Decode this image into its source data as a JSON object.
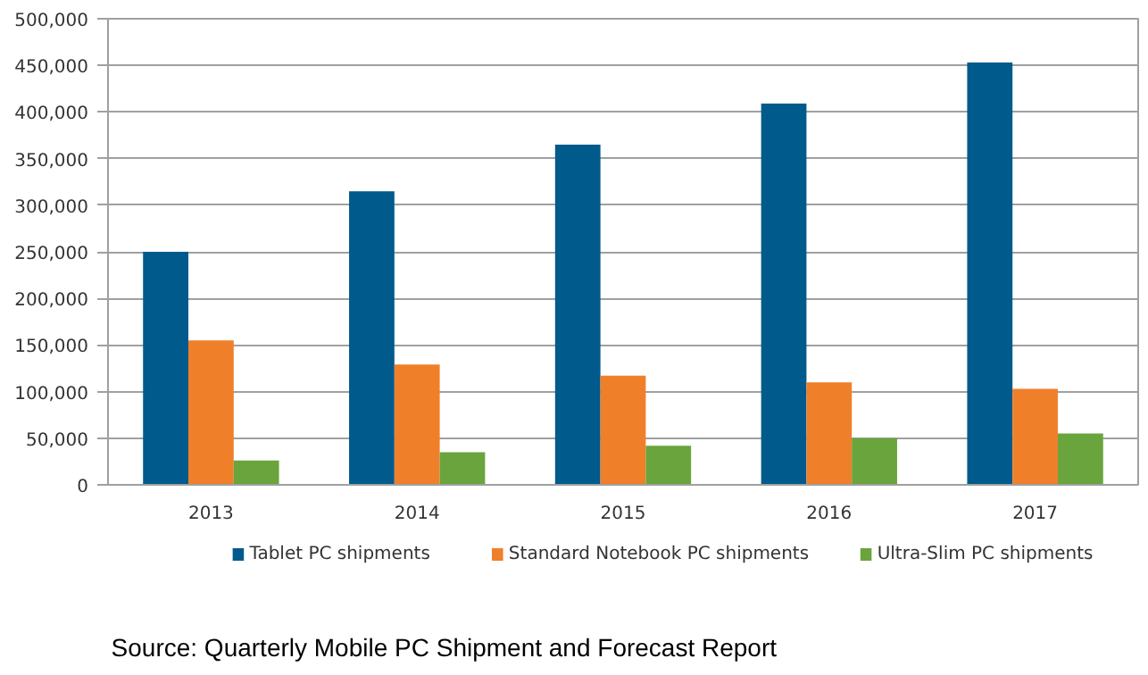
{
  "chart_data": {
    "type": "bar",
    "categories": [
      "2013",
      "2014",
      "2015",
      "2016",
      "2017"
    ],
    "series": [
      {
        "name": "Tablet PC shipments",
        "color": "#005a8c",
        "values": [
          250000,
          315000,
          365000,
          409000,
          453000
        ]
      },
      {
        "name": "Standard Notebook PC shipments",
        "color": "#f07f2a",
        "values": [
          155000,
          129000,
          117000,
          110000,
          103000
        ]
      },
      {
        "name": "Ultra-Slim PC shipments",
        "color": "#6aa43c",
        "values": [
          26000,
          35000,
          42000,
          50000,
          55000
        ]
      }
    ],
    "ylim": [
      0,
      500000
    ],
    "yticks": [
      {
        "value": 0,
        "label": "0"
      },
      {
        "value": 50000,
        "label": "50,000"
      },
      {
        "value": 100000,
        "label": "100,000"
      },
      {
        "value": 150000,
        "label": "150,000"
      },
      {
        "value": 200000,
        "label": "200,000"
      },
      {
        "value": 250000,
        "label": "250,000"
      },
      {
        "value": 300000,
        "label": "300,000"
      },
      {
        "value": 350000,
        "label": "350,000"
      },
      {
        "value": 400000,
        "label": "400,000"
      },
      {
        "value": 450000,
        "label": "450,000"
      },
      {
        "value": 500000,
        "label": "500,000"
      }
    ],
    "grid": "y",
    "legend": "bottom",
    "annotations": [
      "Source: Quarterly Mobile PC Shipment and Forecast Report"
    ]
  }
}
